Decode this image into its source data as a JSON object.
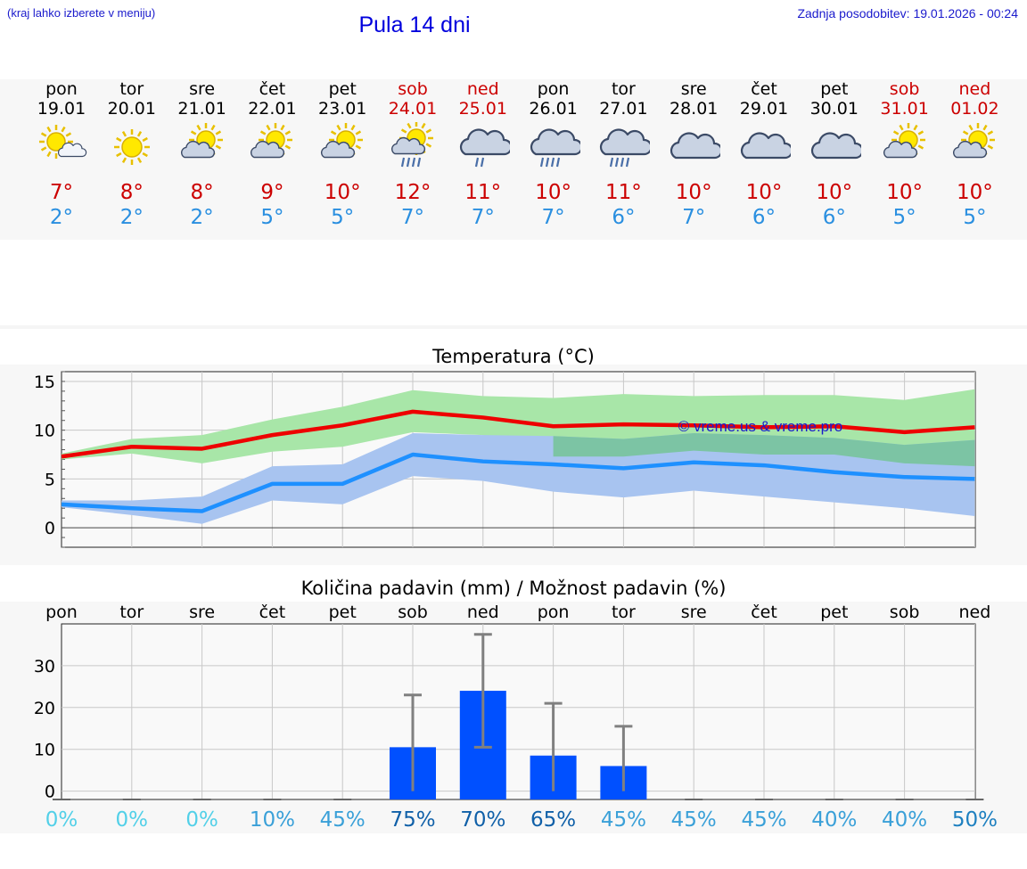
{
  "header": {
    "hint": "(kraj lahko izberete v meniju)",
    "title": "Pula 14 dni",
    "updated": "Zadnja posodobitev: 19.01.2026 - 00:24"
  },
  "days": [
    {
      "name": "pon",
      "date": "19.01",
      "weekend": false,
      "icon": "sun-cloud-small-icon",
      "max": "7°",
      "min": "2°"
    },
    {
      "name": "tor",
      "date": "20.01",
      "weekend": false,
      "icon": "sun-icon",
      "max": "8°",
      "min": "2°"
    },
    {
      "name": "sre",
      "date": "21.01",
      "weekend": false,
      "icon": "sun-cloud-icon",
      "max": "8°",
      "min": "2°"
    },
    {
      "name": "čet",
      "date": "22.01",
      "weekend": false,
      "icon": "sun-cloud-icon",
      "max": "9°",
      "min": "5°"
    },
    {
      "name": "pet",
      "date": "23.01",
      "weekend": false,
      "icon": "sun-cloud-icon",
      "max": "10°",
      "min": "5°"
    },
    {
      "name": "sob",
      "date": "24.01",
      "weekend": true,
      "icon": "sun-cloud-rain-icon",
      "max": "12°",
      "min": "7°"
    },
    {
      "name": "ned",
      "date": "25.01",
      "weekend": true,
      "icon": "cloud-rain-light-icon",
      "max": "11°",
      "min": "7°"
    },
    {
      "name": "pon",
      "date": "26.01",
      "weekend": false,
      "icon": "cloud-rain-icon",
      "max": "10°",
      "min": "7°"
    },
    {
      "name": "tor",
      "date": "27.01",
      "weekend": false,
      "icon": "cloud-rain-icon",
      "max": "11°",
      "min": "6°"
    },
    {
      "name": "sre",
      "date": "28.01",
      "weekend": false,
      "icon": "cloud-icon",
      "max": "10°",
      "min": "7°"
    },
    {
      "name": "čet",
      "date": "29.01",
      "weekend": false,
      "icon": "cloud-icon",
      "max": "10°",
      "min": "6°"
    },
    {
      "name": "pet",
      "date": "30.01",
      "weekend": false,
      "icon": "cloud-icon",
      "max": "10°",
      "min": "6°"
    },
    {
      "name": "sob",
      "date": "31.01",
      "weekend": true,
      "icon": "sun-cloud-icon",
      "max": "10°",
      "min": "5°"
    },
    {
      "name": "ned",
      "date": "01.02",
      "weekend": true,
      "icon": "sun-cloud-icon",
      "max": "10°",
      "min": "5°"
    }
  ],
  "colors": {
    "max_line": "#ee0000",
    "min_line": "#1e90ff",
    "max_band": "#a8e6a8",
    "min_band": "#a8c4f0",
    "overlap_band": "#7cc4a4",
    "bar": "#0050ff",
    "error_bar": "#808080",
    "watermark": "#1a1acc"
  },
  "chart_data": [
    {
      "type": "line",
      "title": "Temperatura (°C)",
      "x": [
        0,
        1,
        2,
        3,
        4,
        5,
        6,
        7,
        8,
        9,
        10,
        11,
        12,
        13
      ],
      "ylim": [
        -2,
        16
      ],
      "yticks": [
        0,
        5,
        10,
        15
      ],
      "grid": true,
      "watermark": "© vreme.us & vreme.pro",
      "series": [
        {
          "name": "max",
          "values": [
            7.3,
            8.3,
            8.1,
            9.5,
            10.5,
            11.9,
            11.3,
            10.4,
            10.6,
            10.5,
            10.3,
            10.4,
            9.8,
            10.3
          ]
        },
        {
          "name": "min",
          "values": [
            2.4,
            2.0,
            1.7,
            4.5,
            4.5,
            7.5,
            6.8,
            6.5,
            6.1,
            6.7,
            6.4,
            5.7,
            5.2,
            5.0
          ]
        },
        {
          "name": "max_range_low",
          "values": [
            7.0,
            7.6,
            6.6,
            7.8,
            8.3,
            9.8,
            9.5,
            7.3,
            7.3,
            7.9,
            7.5,
            7.5,
            6.6,
            6.3
          ]
        },
        {
          "name": "max_range_high",
          "values": [
            7.6,
            9.1,
            9.5,
            11.1,
            12.4,
            14.1,
            13.5,
            13.3,
            13.7,
            13.5,
            13.6,
            13.6,
            13.1,
            14.2
          ]
        },
        {
          "name": "min_range_low",
          "values": [
            2.1,
            1.3,
            0.4,
            2.8,
            2.4,
            5.3,
            4.8,
            3.7,
            3.1,
            3.8,
            3.2,
            2.6,
            2.0,
            1.2
          ]
        },
        {
          "name": "min_range_high",
          "values": [
            2.8,
            2.8,
            3.2,
            6.3,
            6.5,
            9.7,
            9.5,
            9.4,
            9.1,
            9.7,
            9.5,
            9.2,
            8.5,
            9.0
          ]
        }
      ]
    },
    {
      "type": "bar",
      "title": "Količina padavin (mm) / Možnost padavin (%)",
      "categories": [
        "pon",
        "tor",
        "sre",
        "čet",
        "pet",
        "sob",
        "ned",
        "pon",
        "tor",
        "sre",
        "čet",
        "pet",
        "sob",
        "ned"
      ],
      "ylim": [
        -2,
        40
      ],
      "yticks": [
        0,
        10,
        20,
        30
      ],
      "grid": true,
      "series": [
        {
          "name": "precip_mm",
          "values": [
            0,
            0,
            0,
            0,
            0,
            10.5,
            24,
            8.5,
            6,
            0,
            0,
            0,
            0,
            0
          ]
        },
        {
          "name": "err_low",
          "values": [
            0,
            0,
            0,
            0,
            0,
            0,
            10.5,
            0,
            0,
            0,
            0,
            0,
            0,
            0
          ]
        },
        {
          "name": "err_high",
          "values": [
            0,
            0,
            0,
            0,
            0,
            23,
            37.5,
            21,
            15.5,
            0,
            0,
            0,
            0,
            0
          ]
        }
      ],
      "probability": [
        "0%",
        "0%",
        "0%",
        "10%",
        "45%",
        "75%",
        "70%",
        "65%",
        "45%",
        "45%",
        "45%",
        "40%",
        "40%",
        "50%"
      ]
    }
  ]
}
